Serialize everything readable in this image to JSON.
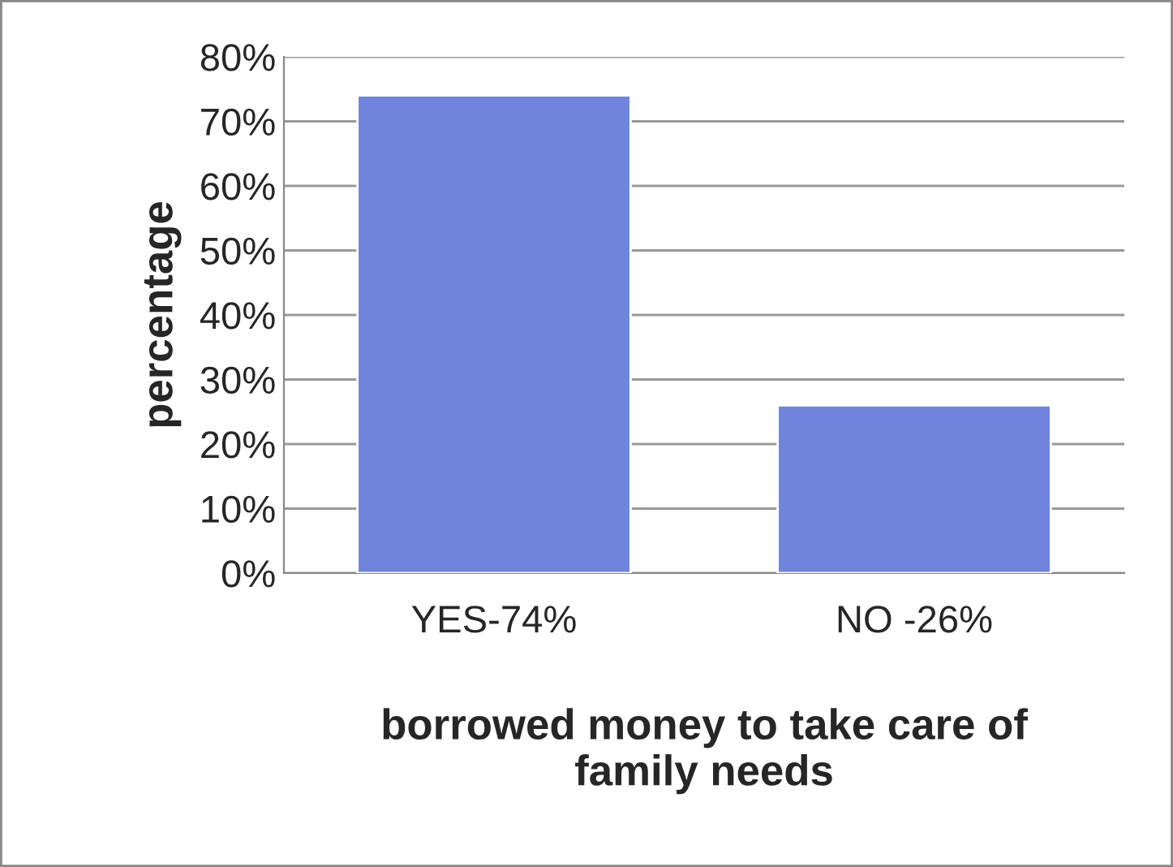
{
  "chart_data": {
    "type": "bar",
    "categories": [
      "YES-74%",
      "NO -26%"
    ],
    "values": [
      74,
      26
    ],
    "color": "#6f84dc",
    "ylabel": "percentage",
    "xlabel": "borrowed money to take care of\nfamily needs",
    "ylim": [
      0,
      80
    ],
    "yticks": [
      {
        "value": 0,
        "label": "0%"
      },
      {
        "value": 10,
        "label": "10%"
      },
      {
        "value": 20,
        "label": "20%"
      },
      {
        "value": 30,
        "label": "30%"
      },
      {
        "value": 40,
        "label": "40%"
      },
      {
        "value": 50,
        "label": "50%"
      },
      {
        "value": 60,
        "label": "60%"
      },
      {
        "value": 70,
        "label": "70%"
      },
      {
        "value": 80,
        "label": "80%"
      }
    ],
    "grid": "y"
  }
}
